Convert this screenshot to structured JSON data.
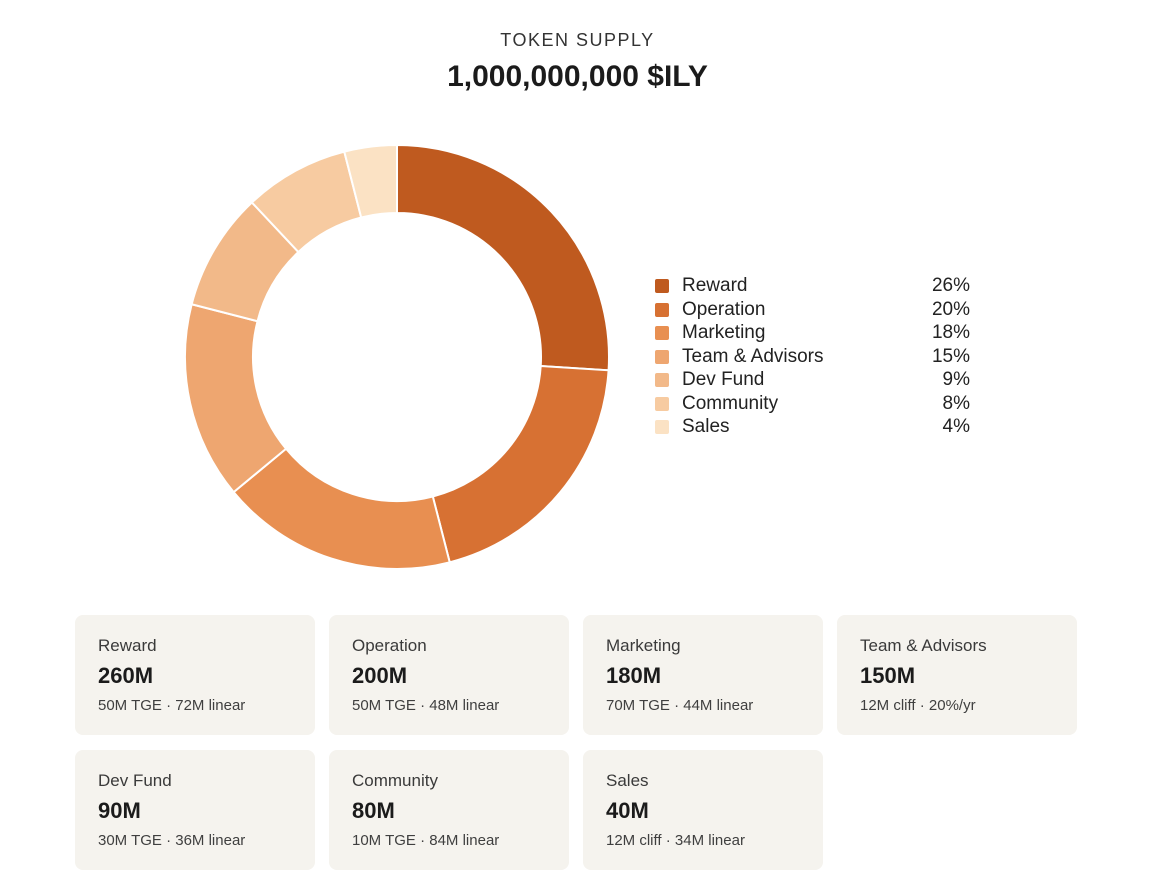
{
  "header": {
    "kicker": "TOKEN SUPPLY",
    "title": "1,000,000,000 $ILY"
  },
  "chart_data": {
    "type": "pie",
    "variant": "donut",
    "title": "",
    "categories": [
      "Reward",
      "Operation",
      "Marketing",
      "Team & Advisors",
      "Dev Fund",
      "Community",
      "Sales"
    ],
    "values": [
      26,
      20,
      18,
      15,
      9,
      8,
      4
    ],
    "value_labels": [
      "26%",
      "20%",
      "18%",
      "15%",
      "9%",
      "8%",
      "4%"
    ],
    "colors": [
      "#bf5a1f",
      "#d77133",
      "#e88f51",
      "#eea670",
      "#f2b989",
      "#f7cba1",
      "#fbe2c4"
    ],
    "legend_position": "right",
    "grid": false
  },
  "cards": [
    {
      "name": "Reward",
      "amount": "260M",
      "detail": "50M TGE · 72M linear"
    },
    {
      "name": "Operation",
      "amount": "200M",
      "detail": "50M TGE · 48M linear"
    },
    {
      "name": "Marketing",
      "amount": "180M",
      "detail": "70M TGE · 44M linear"
    },
    {
      "name": "Team & Advisors",
      "amount": "150M",
      "detail": "12M cliff · 20%/yr"
    },
    {
      "name": "Dev Fund",
      "amount": "90M",
      "detail": "30M TGE · 36M linear"
    },
    {
      "name": "Community",
      "amount": "80M",
      "detail": "10M TGE · 84M linear"
    },
    {
      "name": "Sales",
      "amount": "40M",
      "detail": "12M cliff · 34M linear"
    }
  ]
}
